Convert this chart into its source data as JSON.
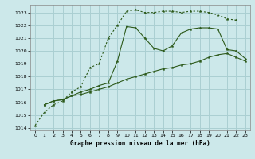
{
  "title": "Graphe pression niveau de la mer (hPa)",
  "bg_color": "#cce8ea",
  "grid_color": "#aacfd2",
  "line_color": "#2d5a1b",
  "xlim": [
    -0.5,
    23.5
  ],
  "ylim": [
    1013.8,
    1023.6
  ],
  "yticks": [
    1014,
    1015,
    1016,
    1017,
    1018,
    1019,
    1020,
    1021,
    1022,
    1023
  ],
  "xticks": [
    0,
    1,
    2,
    3,
    4,
    5,
    6,
    7,
    8,
    9,
    10,
    11,
    12,
    13,
    14,
    15,
    16,
    17,
    18,
    19,
    20,
    21,
    22,
    23
  ],
  "series": [
    {
      "x": [
        0,
        1,
        2,
        3,
        4,
        5,
        6,
        7,
        8,
        9,
        10,
        11,
        12,
        13,
        14,
        15,
        16,
        17,
        18,
        19,
        20,
        21,
        22
      ],
      "y": [
        1014.2,
        1015.2,
        1015.8,
        1016.1,
        1016.8,
        1017.2,
        1018.7,
        1019.0,
        1021.0,
        1022.0,
        1023.1,
        1023.2,
        1023.0,
        1023.0,
        1023.1,
        1023.1,
        1023.0,
        1023.1,
        1023.1,
        1023.0,
        1022.8,
        1022.5,
        1022.4
      ],
      "style": "dotted",
      "markersize": 2.2
    },
    {
      "x": [
        1,
        2,
        3,
        4,
        5,
        6,
        7,
        8,
        9,
        10,
        11,
        12,
        13,
        14,
        15,
        16,
        17,
        18,
        19,
        20,
        21,
        22,
        23
      ],
      "y": [
        1015.8,
        1016.1,
        1016.2,
        1016.5,
        1016.6,
        1016.8,
        1017.0,
        1017.2,
        1017.5,
        1017.8,
        1018.0,
        1018.2,
        1018.4,
        1018.6,
        1018.7,
        1018.9,
        1019.0,
        1019.2,
        1019.5,
        1019.7,
        1019.8,
        1019.5,
        1019.2
      ],
      "style": "solid",
      "markersize": 2.2
    },
    {
      "x": [
        1,
        2,
        3,
        4,
        5,
        6,
        7,
        8,
        9,
        10,
        11,
        12,
        13,
        14,
        15,
        16,
        17,
        18,
        19,
        20,
        21,
        22,
        23
      ],
      "y": [
        1015.8,
        1016.1,
        1016.2,
        1016.5,
        1016.8,
        1017.0,
        1017.3,
        1017.5,
        1019.2,
        1021.9,
        1021.8,
        1021.0,
        1020.2,
        1020.0,
        1020.4,
        1021.4,
        1021.7,
        1021.8,
        1021.8,
        1021.7,
        1020.1,
        1020.0,
        1019.4
      ],
      "style": "solid",
      "markersize": 2.2
    }
  ]
}
